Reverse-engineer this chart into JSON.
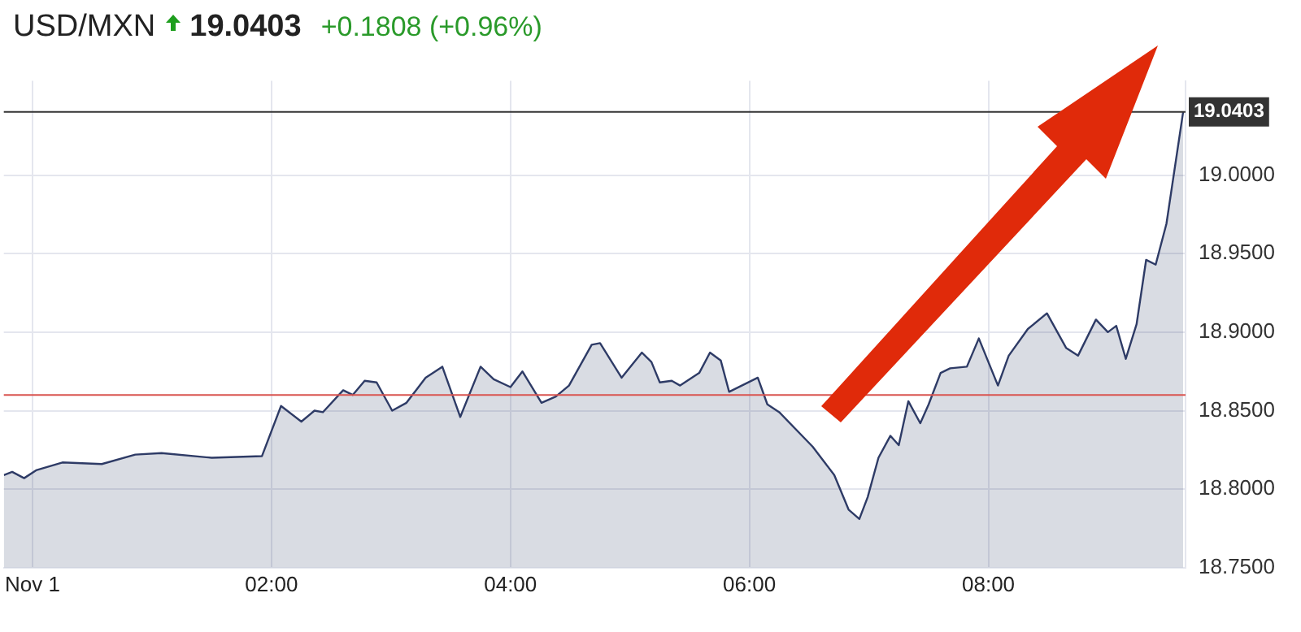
{
  "chart_data": {
    "type": "area",
    "title": "USD/MXN",
    "subtitle": "19.0403",
    "annotations": [
      "+0.1808 (+0.96%)"
    ],
    "series": [
      {
        "color": "#2e3b66",
        "x": [
          -0.24,
          -0.17,
          -0.07,
          0.03,
          0.25,
          0.58,
          0.86,
          1.08,
          1.5,
          1.92,
          2.08,
          2.25,
          2.36,
          2.43,
          2.6,
          2.68,
          2.78,
          2.88,
          3.01,
          3.13,
          3.29,
          3.43,
          3.58,
          3.75,
          3.86,
          4.0,
          4.1,
          4.26,
          4.38,
          4.49,
          4.68,
          4.75,
          4.93,
          5.1,
          5.18,
          5.25,
          5.35,
          5.42,
          5.58,
          5.67,
          5.76,
          5.83,
          6.07,
          6.15,
          6.25,
          6.53,
          6.71,
          6.83,
          6.92,
          6.99,
          7.08,
          7.18,
          7.25,
          7.33,
          7.43,
          7.5,
          7.6,
          7.68,
          7.82,
          7.92,
          8.08,
          8.17,
          8.33,
          8.49,
          8.65,
          8.75,
          8.9,
          9.0,
          9.07,
          9.15,
          9.24,
          9.32,
          9.4,
          9.49,
          9.63
        ],
        "values": [
          18.809,
          18.811,
          18.807,
          18.812,
          18.817,
          18.816,
          18.822,
          18.823,
          18.82,
          18.821,
          18.853,
          18.843,
          18.85,
          18.849,
          18.863,
          18.86,
          18.869,
          18.868,
          18.85,
          18.855,
          18.871,
          18.878,
          18.846,
          18.878,
          18.87,
          18.865,
          18.875,
          18.855,
          18.859,
          18.866,
          18.892,
          18.893,
          18.871,
          18.887,
          18.881,
          18.868,
          18.869,
          18.866,
          18.874,
          18.887,
          18.882,
          18.862,
          18.871,
          18.854,
          18.849,
          18.827,
          18.809,
          18.787,
          18.781,
          18.795,
          18.82,
          18.834,
          18.828,
          18.856,
          18.842,
          18.854,
          18.874,
          18.877,
          18.878,
          18.896,
          18.866,
          18.885,
          18.902,
          18.912,
          18.89,
          18.885,
          18.908,
          18.9,
          18.904,
          18.883,
          18.905,
          18.946,
          18.943,
          18.969,
          19.0403
        ]
      }
    ],
    "xlim": [
      -0.24,
      9.65
    ],
    "xticks": [
      {
        "value": 0,
        "label": "Nov 1"
      },
      {
        "value": 2,
        "label": "02:00"
      },
      {
        "value": 4,
        "label": "04:00"
      },
      {
        "value": 6,
        "label": "06:00"
      },
      {
        "value": 8,
        "label": "08:00"
      }
    ],
    "ylim": [
      18.75,
      19.06
    ],
    "yticks": [
      {
        "value": 18.75,
        "label": "18.7500"
      },
      {
        "value": 18.8,
        "label": "18.8000"
      },
      {
        "value": 18.85,
        "label": "18.8500"
      },
      {
        "value": 18.9,
        "label": "18.9000"
      },
      {
        "value": 18.95,
        "label": "18.9500"
      },
      {
        "value": 19.0,
        "label": "19.0000"
      }
    ],
    "ref_lines": [
      {
        "axis": "y",
        "value": 19.0403,
        "label": "19.0403",
        "color": "#333333"
      },
      {
        "axis": "y",
        "value": 18.86,
        "color": "#d9534f"
      }
    ],
    "grid": true,
    "legend": false,
    "marker": "none",
    "line_style": "solid"
  }
}
